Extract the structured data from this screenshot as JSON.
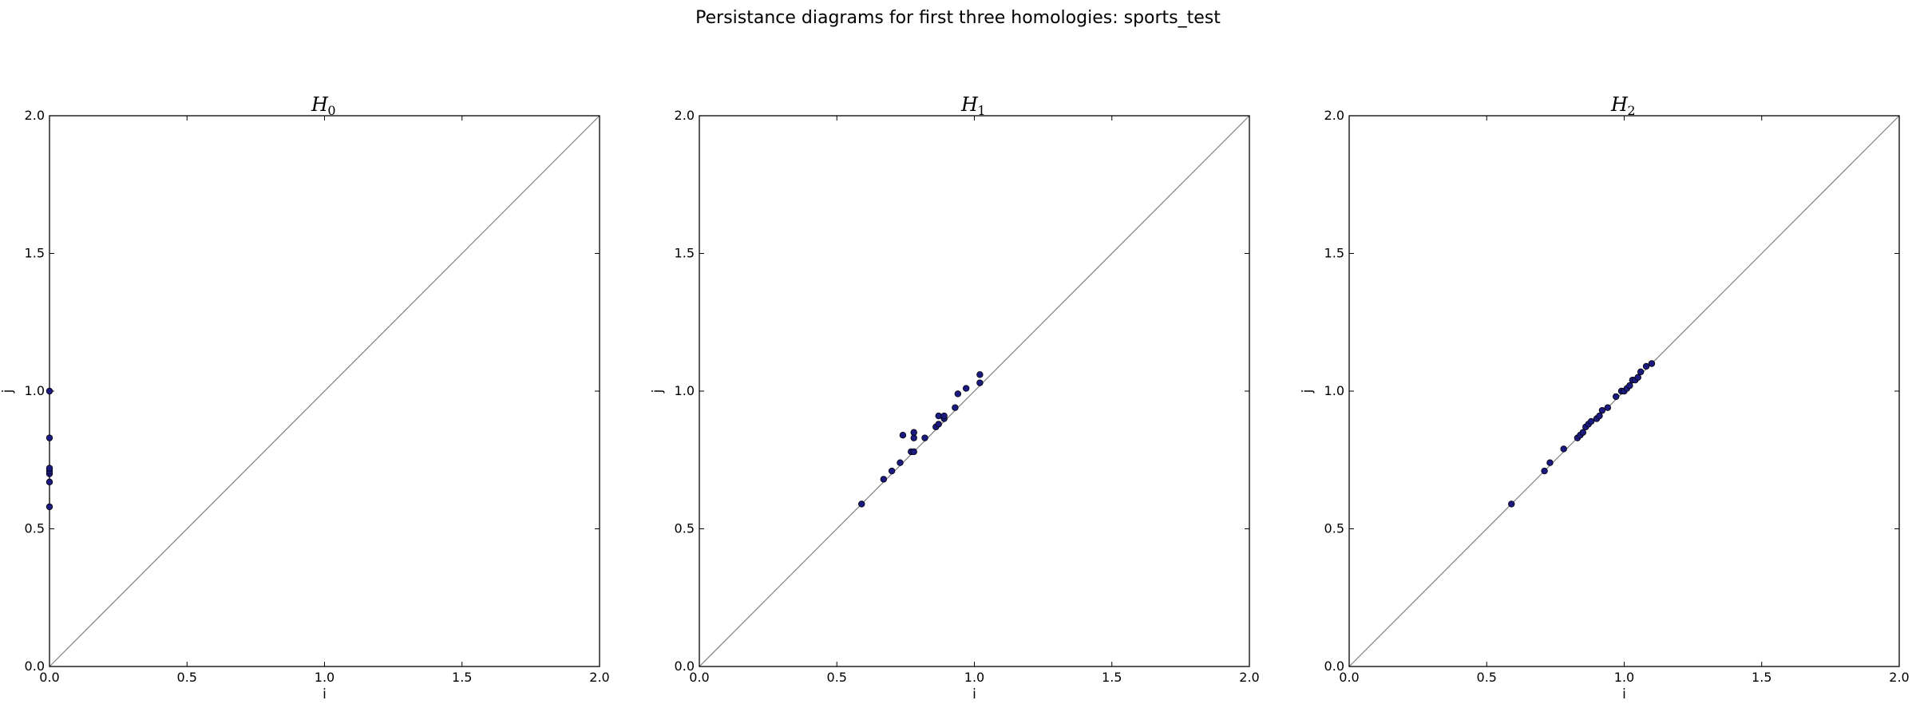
{
  "figure": {
    "suptitle": "Persistance diagrams for first three homologies: sports_test"
  },
  "colors": {
    "point_fill": "#1a1a80",
    "point_stroke": "#000000",
    "diagonal": "#808080",
    "frame": "#000000"
  },
  "chart_data": [
    {
      "type": "scatter",
      "title_main": "H",
      "title_sub": "0",
      "xlabel": "i",
      "ylabel": "j",
      "xlim": [
        0.0,
        2.0
      ],
      "ylim": [
        0.0,
        2.0
      ],
      "xticks": [
        "0.0",
        "0.5",
        "1.0",
        "1.5",
        "2.0"
      ],
      "yticks": [
        "0.0",
        "0.5",
        "1.0",
        "1.5",
        "2.0"
      ],
      "diagonal": true,
      "grid": false,
      "points": [
        [
          0.0,
          0.58
        ],
        [
          0.0,
          0.67
        ],
        [
          0.0,
          0.7
        ],
        [
          0.0,
          0.71
        ],
        [
          0.0,
          0.72
        ],
        [
          0.0,
          0.83
        ],
        [
          0.0,
          1.0
        ]
      ]
    },
    {
      "type": "scatter",
      "title_main": "H",
      "title_sub": "1",
      "xlabel": "i",
      "ylabel": "j",
      "xlim": [
        0.0,
        2.0
      ],
      "ylim": [
        0.0,
        2.0
      ],
      "xticks": [
        "0.0",
        "0.5",
        "1.0",
        "1.5",
        "2.0"
      ],
      "yticks": [
        "0.0",
        "0.5",
        "1.0",
        "1.5",
        "2.0"
      ],
      "diagonal": true,
      "grid": false,
      "points": [
        [
          0.59,
          0.59
        ],
        [
          0.67,
          0.68
        ],
        [
          0.7,
          0.71
        ],
        [
          0.73,
          0.74
        ],
        [
          0.74,
          0.84
        ],
        [
          0.77,
          0.78
        ],
        [
          0.78,
          0.78
        ],
        [
          0.78,
          0.83
        ],
        [
          0.78,
          0.85
        ],
        [
          0.82,
          0.83
        ],
        [
          0.86,
          0.87
        ],
        [
          0.87,
          0.88
        ],
        [
          0.87,
          0.91
        ],
        [
          0.89,
          0.9
        ],
        [
          0.89,
          0.91
        ],
        [
          0.93,
          0.94
        ],
        [
          0.94,
          0.99
        ],
        [
          0.97,
          1.01
        ],
        [
          1.02,
          1.03
        ],
        [
          1.02,
          1.06
        ]
      ]
    },
    {
      "type": "scatter",
      "title_main": "H",
      "title_sub": "2",
      "xlabel": "i",
      "ylabel": "j",
      "xlim": [
        0.0,
        2.0
      ],
      "ylim": [
        0.0,
        2.0
      ],
      "xticks": [
        "0.0",
        "0.5",
        "1.0",
        "1.5",
        "2.0"
      ],
      "yticks": [
        "0.0",
        "0.5",
        "1.0",
        "1.5",
        "2.0"
      ],
      "diagonal": true,
      "grid": false,
      "points": [
        [
          0.59,
          0.59
        ],
        [
          0.71,
          0.71
        ],
        [
          0.73,
          0.74
        ],
        [
          0.78,
          0.79
        ],
        [
          0.83,
          0.83
        ],
        [
          0.84,
          0.84
        ],
        [
          0.85,
          0.85
        ],
        [
          0.86,
          0.87
        ],
        [
          0.87,
          0.88
        ],
        [
          0.88,
          0.89
        ],
        [
          0.9,
          0.9
        ],
        [
          0.91,
          0.91
        ],
        [
          0.92,
          0.93
        ],
        [
          0.94,
          0.94
        ],
        [
          0.97,
          0.98
        ],
        [
          0.99,
          1.0
        ],
        [
          1.0,
          1.0
        ],
        [
          1.01,
          1.01
        ],
        [
          1.02,
          1.02
        ],
        [
          1.03,
          1.04
        ],
        [
          1.04,
          1.04
        ],
        [
          1.05,
          1.05
        ],
        [
          1.06,
          1.07
        ],
        [
          1.08,
          1.09
        ],
        [
          1.1,
          1.1
        ]
      ]
    }
  ]
}
